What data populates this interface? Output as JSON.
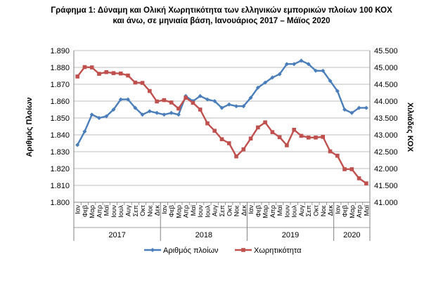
{
  "title_lines": [
    "Γράφημα 1: Δύναμη και Ολική Χωρητικότητα των ελληνικών εμπορικών πλοίων 100 ΚΟΧ",
    "και άνω, σε μηνιαία βάση, Ιανουάριος 2017 – Μάϊος 2020"
  ],
  "chart_data": {
    "type": "line",
    "title": "Γράφημα 1: Δύναμη και Ολική Χωρητικότητα των ελληνικών εμπορικών πλοίων 100 ΚΟΧ και άνω, σε μηνιαία βάση, Ιανουάριος 2017 – Μάϊος 2020",
    "ylabel_left": "Αριθμός Πλοίων",
    "ylabel_right": "Χιλιάδες ΚΟΧ",
    "ylim_left": [
      1800,
      1890
    ],
    "ylim_right": [
      41000,
      45500
    ],
    "yticks_left": [
      "1.800",
      "1.810",
      "1.820",
      "1.830",
      "1.840",
      "1.850",
      "1.860",
      "1.870",
      "1.880",
      "1.890"
    ],
    "yticks_right": [
      "41.000",
      "41.500",
      "42.000",
      "42.500",
      "43.000",
      "43.500",
      "44.000",
      "44.500",
      "45.000",
      "45.500"
    ],
    "grid": true,
    "legend_position": "bottom",
    "months": [
      "Ιαν",
      "Φεβ",
      "Μαρ",
      "Απρ",
      "Μαϊ",
      "Ιουν",
      "Ιουλ",
      "Αυγ",
      "Σεπ",
      "Οκτ",
      "Νοε",
      "Δεκ",
      "Ιαν",
      "Φεβ",
      "Μαρ",
      "Απρ",
      "Μαϊ",
      "Ιουν",
      "Ιουλ",
      "Αυγ",
      "Σεπ",
      "Οκτ",
      "Νοε",
      "Δεκ",
      "Ιαν",
      "Φεβ",
      "Μαρ",
      "Απρ",
      "Μαϊ",
      "Ιουν",
      "Ιουλ",
      "Αυγ",
      "Σεπ",
      "Οκτ",
      "Νοε",
      "Δεκ",
      "Ιαν",
      "Φεβ",
      "Μαρ",
      "Απρ",
      "Μαϊ"
    ],
    "years": [
      {
        "label": "2017",
        "count": 12
      },
      {
        "label": "2018",
        "count": 12
      },
      {
        "label": "2019",
        "count": 12
      },
      {
        "label": "2020",
        "count": 5
      }
    ],
    "series": [
      {
        "name": "Αριθμός πλοίων",
        "axis": "left",
        "color": "#4a7ebb",
        "marker": "diamond",
        "values": [
          1834,
          1842,
          1852,
          1850,
          1851,
          1855,
          1861,
          1861,
          1856,
          1852,
          1854,
          1853,
          1852,
          1853,
          1852,
          1863,
          1860,
          1863,
          1861,
          1860,
          1856,
          1858,
          1857,
          1857,
          1862,
          1868,
          1871,
          1874,
          1876,
          1882,
          1882,
          1884,
          1882,
          1878,
          1878,
          1872,
          1866,
          1855,
          1853,
          1856,
          1856
        ]
      },
      {
        "name": "Χωρητικότητα",
        "axis": "right",
        "color": "#c0504d",
        "marker": "square",
        "values": [
          44.73,
          45.01,
          45.0,
          44.81,
          44.86,
          44.83,
          44.82,
          44.76,
          44.55,
          44.54,
          44.3,
          43.99,
          44.03,
          43.96,
          43.78,
          44.1,
          43.95,
          43.75,
          43.34,
          43.12,
          42.87,
          42.75,
          42.36,
          42.57,
          42.89,
          43.22,
          43.37,
          43.08,
          42.93,
          42.69,
          43.15,
          42.97,
          42.92,
          42.92,
          42.94,
          42.51,
          42.38,
          41.98,
          41.98,
          41.71,
          41.56
        ]
      }
    ]
  }
}
